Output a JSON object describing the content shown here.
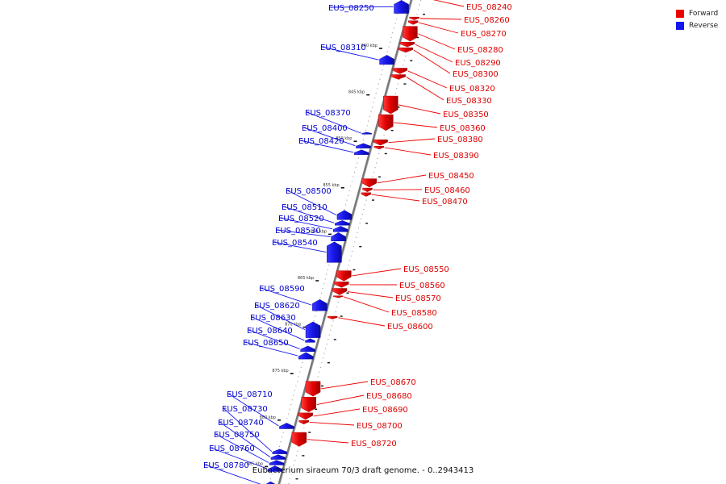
{
  "caption": "Eubacterium siraeum 70/3 draft genome. - 0..2943413",
  "colors": {
    "forward": "#ee0000",
    "reverse": "#1515ee",
    "backbone": "#777777"
  },
  "legend": [
    {
      "label": "Forward",
      "color": "#ee0000"
    },
    {
      "label": "Reverse",
      "color": "#1515ee"
    }
  ],
  "scale_ticks": [
    {
      "label": "840 kbp",
      "kbp": 840
    },
    {
      "label": "845 kbp",
      "kbp": 845
    },
    {
      "label": "850 kbp",
      "kbp": 850
    },
    {
      "label": "855 kbp",
      "kbp": 855
    },
    {
      "label": "860 kbp",
      "kbp": 860
    },
    {
      "label": "865 kbp",
      "kbp": 865
    },
    {
      "label": "870 kbp",
      "kbp": 870
    },
    {
      "label": "875 kbp",
      "kbp": 875
    },
    {
      "label": "880 kbp",
      "kbp": 880
    },
    {
      "label": "885 kbp",
      "kbp": 885
    }
  ],
  "genes": [
    {
      "id": "EUS_08240",
      "strand": "forward",
      "from_kbp": 834.6,
      "to_kbp": 834.9
    },
    {
      "id": "EUS_08250",
      "strand": "reverse",
      "from_kbp": 835.0,
      "to_kbp": 836.4
    },
    {
      "id": "EUS_08260",
      "strand": "forward",
      "from_kbp": 836.8,
      "to_kbp": 837.1
    },
    {
      "id": "EUS_08270",
      "strand": "forward",
      "from_kbp": 837.2,
      "to_kbp": 837.6
    },
    {
      "id": "EUS_08280",
      "strand": "forward",
      "from_kbp": 837.8,
      "to_kbp": 839.4
    },
    {
      "id": "EUS_08290",
      "strand": "forward",
      "from_kbp": 839.5,
      "to_kbp": 840.0
    },
    {
      "id": "EUS_08300",
      "strand": "forward",
      "from_kbp": 840.1,
      "to_kbp": 840.6
    },
    {
      "id": "EUS_08310",
      "strand": "reverse",
      "from_kbp": 840.9,
      "to_kbp": 841.9
    },
    {
      "id": "EUS_08320",
      "strand": "forward",
      "from_kbp": 842.3,
      "to_kbp": 842.9
    },
    {
      "id": "EUS_08330",
      "strand": "forward",
      "from_kbp": 843.0,
      "to_kbp": 843.5
    },
    {
      "id": "EUS_08350",
      "strand": "forward",
      "from_kbp": 845.3,
      "to_kbp": 847.2
    },
    {
      "id": "EUS_08360",
      "strand": "forward",
      "from_kbp": 847.3,
      "to_kbp": 849.0
    },
    {
      "id": "EUS_08370",
      "strand": "reverse",
      "from_kbp": 849.2,
      "to_kbp": 849.4
    },
    {
      "id": "EUS_08380",
      "strand": "forward",
      "from_kbp": 850.0,
      "to_kbp": 850.6
    },
    {
      "id": "EUS_08390",
      "strand": "forward",
      "from_kbp": 850.7,
      "to_kbp": 851.0
    },
    {
      "id": "EUS_08400",
      "strand": "reverse",
      "from_kbp": 850.4,
      "to_kbp": 850.9
    },
    {
      "id": "EUS_08420",
      "strand": "reverse",
      "from_kbp": 851.1,
      "to_kbp": 851.6
    },
    {
      "id": "EUS_08450",
      "strand": "forward",
      "from_kbp": 854.2,
      "to_kbp": 855.1
    },
    {
      "id": "EUS_08460",
      "strand": "forward",
      "from_kbp": 855.2,
      "to_kbp": 855.6
    },
    {
      "id": "EUS_08470",
      "strand": "forward",
      "from_kbp": 855.7,
      "to_kbp": 856.1
    },
    {
      "id": "EUS_08500",
      "strand": "reverse",
      "from_kbp": 857.6,
      "to_kbp": 858.6
    },
    {
      "id": "EUS_08510",
      "strand": "reverse",
      "from_kbp": 858.7,
      "to_kbp": 859.2
    },
    {
      "id": "EUS_08520",
      "strand": "reverse",
      "from_kbp": 859.3,
      "to_kbp": 859.9
    },
    {
      "id": "EUS_08530",
      "strand": "reverse",
      "from_kbp": 860.0,
      "to_kbp": 860.9
    },
    {
      "id": "EUS_08540",
      "strand": "reverse",
      "from_kbp": 861.0,
      "to_kbp": 863.2
    },
    {
      "id": "EUS_08550",
      "strand": "forward",
      "from_kbp": 864.1,
      "to_kbp": 865.2
    },
    {
      "id": "EUS_08560",
      "strand": "forward",
      "from_kbp": 865.3,
      "to_kbp": 865.9
    },
    {
      "id": "EUS_08570",
      "strand": "forward",
      "from_kbp": 866.0,
      "to_kbp": 866.7
    },
    {
      "id": "EUS_08580",
      "strand": "forward",
      "from_kbp": 866.8,
      "to_kbp": 867.0
    },
    {
      "id": "EUS_08590",
      "strand": "reverse",
      "from_kbp": 867.2,
      "to_kbp": 868.4
    },
    {
      "id": "EUS_08600",
      "strand": "forward",
      "from_kbp": 869.0,
      "to_kbp": 869.3
    },
    {
      "id": "EUS_08620",
      "strand": "reverse",
      "from_kbp": 869.6,
      "to_kbp": 871.3
    },
    {
      "id": "EUS_08630",
      "strand": "reverse",
      "from_kbp": 871.4,
      "to_kbp": 871.8
    },
    {
      "id": "EUS_08640",
      "strand": "reverse",
      "from_kbp": 872.2,
      "to_kbp": 872.8
    },
    {
      "id": "EUS_08650",
      "strand": "reverse",
      "from_kbp": 872.9,
      "to_kbp": 873.6
    },
    {
      "id": "EUS_08670",
      "strand": "forward",
      "from_kbp": 876.0,
      "to_kbp": 877.6
    },
    {
      "id": "EUS_08680",
      "strand": "forward",
      "from_kbp": 877.7,
      "to_kbp": 879.3
    },
    {
      "id": "EUS_08690",
      "strand": "forward",
      "from_kbp": 879.4,
      "to_kbp": 880.1
    },
    {
      "id": "EUS_08700",
      "strand": "forward",
      "from_kbp": 880.2,
      "to_kbp": 880.6
    },
    {
      "id": "EUS_08710",
      "strand": "reverse",
      "from_kbp": 880.5,
      "to_kbp": 881.1
    },
    {
      "id": "EUS_08720",
      "strand": "forward",
      "from_kbp": 881.5,
      "to_kbp": 883.0
    },
    {
      "id": "EUS_08730",
      "strand": "reverse",
      "from_kbp": 883.3,
      "to_kbp": 883.8
    },
    {
      "id": "EUS_08740",
      "strand": "reverse",
      "from_kbp": 883.9,
      "to_kbp": 884.4
    },
    {
      "id": "EUS_08750",
      "strand": "reverse",
      "from_kbp": 884.5,
      "to_kbp": 885.0
    },
    {
      "id": "EUS_08760",
      "strand": "reverse",
      "from_kbp": 885.1,
      "to_kbp": 885.7
    },
    {
      "id": "EUS_08780",
      "strand": "reverse",
      "from_kbp": 886.8,
      "to_kbp": 887.5
    }
  ]
}
